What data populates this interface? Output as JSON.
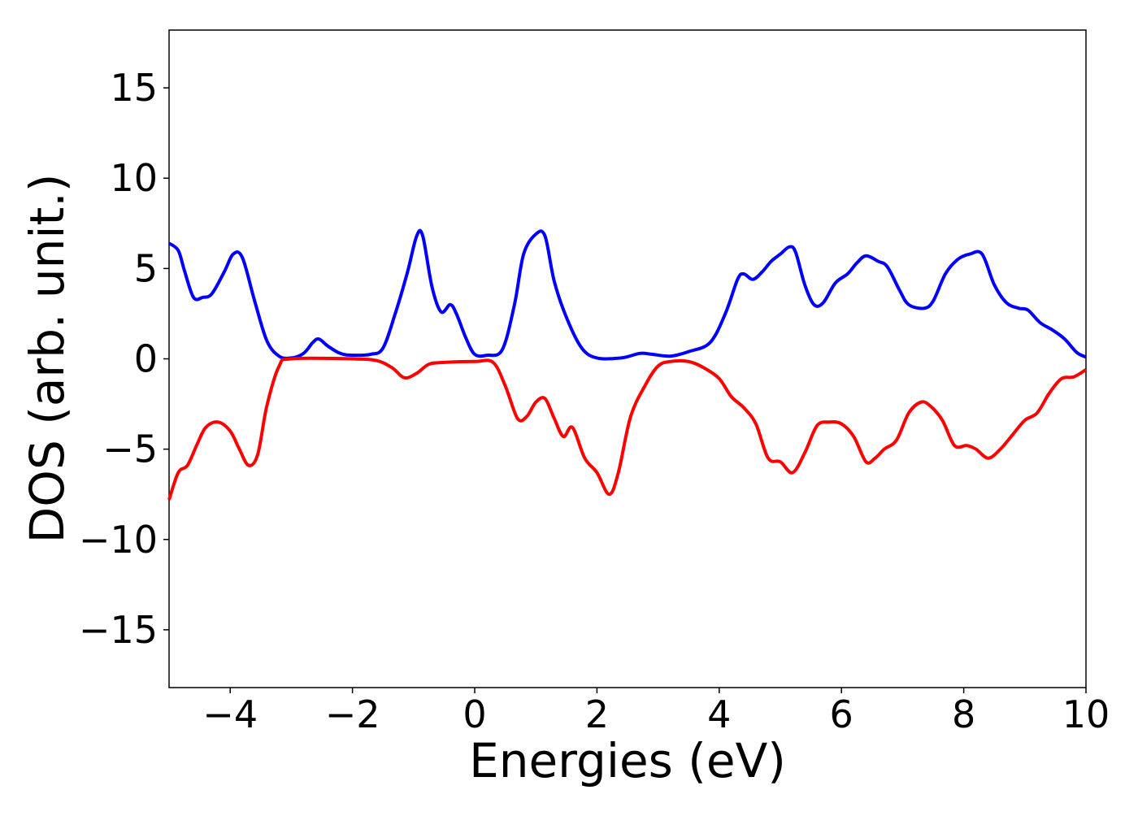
{
  "chart_data": {
    "type": "line",
    "title": "",
    "xlabel": "Energies (eV)",
    "ylabel": "DOS (arb. unit.)",
    "xlim": [
      -5,
      10
    ],
    "ylim": [
      -18.2,
      18.2
    ],
    "x_ticks": [
      -4,
      -2,
      0,
      2,
      4,
      6,
      8,
      10
    ],
    "x_tick_labels": [
      "−4",
      "−2",
      "0",
      "2",
      "4",
      "6",
      "8",
      "10"
    ],
    "y_ticks": [
      15,
      10,
      5,
      0,
      -5,
      -10,
      -15
    ],
    "y_tick_labels": [
      "15",
      "10",
      "5",
      "0",
      "−5",
      "−10",
      "−15"
    ],
    "grid": false,
    "legend": "none",
    "series": [
      {
        "color": "#0000ff",
        "points": [
          [
            -5.0,
            6.4
          ],
          [
            -4.85,
            6.0
          ],
          [
            -4.75,
            4.9
          ],
          [
            -4.6,
            3.4
          ],
          [
            -4.45,
            3.4
          ],
          [
            -4.3,
            3.6
          ],
          [
            -4.1,
            4.8
          ],
          [
            -3.95,
            5.8
          ],
          [
            -3.8,
            5.6
          ],
          [
            -3.6,
            3.2
          ],
          [
            -3.4,
            1.0
          ],
          [
            -3.2,
            0.15
          ],
          [
            -3.0,
            0.05
          ],
          [
            -2.8,
            0.3
          ],
          [
            -2.65,
            0.9
          ],
          [
            -2.55,
            1.1
          ],
          [
            -2.4,
            0.7
          ],
          [
            -2.2,
            0.3
          ],
          [
            -2.0,
            0.2
          ],
          [
            -1.7,
            0.25
          ],
          [
            -1.5,
            0.6
          ],
          [
            -1.3,
            2.5
          ],
          [
            -1.1,
            4.8
          ],
          [
            -0.95,
            6.8
          ],
          [
            -0.85,
            6.8
          ],
          [
            -0.7,
            4.0
          ],
          [
            -0.55,
            2.6
          ],
          [
            -0.4,
            3.0
          ],
          [
            -0.3,
            2.5
          ],
          [
            -0.15,
            1.2
          ],
          [
            0.0,
            0.25
          ],
          [
            0.2,
            0.2
          ],
          [
            0.45,
            0.5
          ],
          [
            0.65,
            3.0
          ],
          [
            0.8,
            5.8
          ],
          [
            1.0,
            6.9
          ],
          [
            1.15,
            6.8
          ],
          [
            1.3,
            4.3
          ],
          [
            1.5,
            2.3
          ],
          [
            1.75,
            0.6
          ],
          [
            2.0,
            0.05
          ],
          [
            2.4,
            0.05
          ],
          [
            2.7,
            0.3
          ],
          [
            2.9,
            0.25
          ],
          [
            3.2,
            0.15
          ],
          [
            3.5,
            0.4
          ],
          [
            3.85,
            0.9
          ],
          [
            4.1,
            2.5
          ],
          [
            4.3,
            4.4
          ],
          [
            4.4,
            4.7
          ],
          [
            4.55,
            4.4
          ],
          [
            4.7,
            4.8
          ],
          [
            4.85,
            5.4
          ],
          [
            5.0,
            5.8
          ],
          [
            5.15,
            6.2
          ],
          [
            5.25,
            5.9
          ],
          [
            5.4,
            4.1
          ],
          [
            5.55,
            3.0
          ],
          [
            5.7,
            3.1
          ],
          [
            5.9,
            4.2
          ],
          [
            6.1,
            4.7
          ],
          [
            6.25,
            5.3
          ],
          [
            6.4,
            5.7
          ],
          [
            6.6,
            5.4
          ],
          [
            6.75,
            5.1
          ],
          [
            6.95,
            3.8
          ],
          [
            7.1,
            3.0
          ],
          [
            7.35,
            2.8
          ],
          [
            7.5,
            3.2
          ],
          [
            7.7,
            4.7
          ],
          [
            7.9,
            5.5
          ],
          [
            8.1,
            5.8
          ],
          [
            8.3,
            5.8
          ],
          [
            8.5,
            4.1
          ],
          [
            8.7,
            3.1
          ],
          [
            8.9,
            2.8
          ],
          [
            9.05,
            2.7
          ],
          [
            9.25,
            2.0
          ],
          [
            9.45,
            1.6
          ],
          [
            9.65,
            1.1
          ],
          [
            9.85,
            0.35
          ],
          [
            10.0,
            0.1
          ]
        ]
      },
      {
        "color": "#ff0000",
        "points": [
          [
            -5.0,
            -7.8
          ],
          [
            -4.85,
            -6.3
          ],
          [
            -4.7,
            -5.9
          ],
          [
            -4.55,
            -4.8
          ],
          [
            -4.4,
            -3.8
          ],
          [
            -4.2,
            -3.5
          ],
          [
            -4.0,
            -4.0
          ],
          [
            -3.85,
            -5.0
          ],
          [
            -3.7,
            -5.9
          ],
          [
            -3.55,
            -5.3
          ],
          [
            -3.4,
            -2.6
          ],
          [
            -3.2,
            -0.4
          ],
          [
            -3.0,
            0.0
          ],
          [
            -2.0,
            0.0
          ],
          [
            -1.6,
            -0.1
          ],
          [
            -1.35,
            -0.5
          ],
          [
            -1.15,
            -1.05
          ],
          [
            -0.95,
            -0.8
          ],
          [
            -0.75,
            -0.3
          ],
          [
            -0.5,
            -0.2
          ],
          [
            0.0,
            -0.15
          ],
          [
            0.3,
            -0.2
          ],
          [
            0.5,
            -1.5
          ],
          [
            0.7,
            -3.3
          ],
          [
            0.85,
            -3.2
          ],
          [
            1.0,
            -2.4
          ],
          [
            1.15,
            -2.2
          ],
          [
            1.3,
            -3.3
          ],
          [
            1.45,
            -4.3
          ],
          [
            1.6,
            -3.8
          ],
          [
            1.8,
            -5.5
          ],
          [
            2.0,
            -6.3
          ],
          [
            2.2,
            -7.5
          ],
          [
            2.35,
            -6.3
          ],
          [
            2.55,
            -3.2
          ],
          [
            2.8,
            -1.4
          ],
          [
            3.0,
            -0.4
          ],
          [
            3.2,
            -0.15
          ],
          [
            3.5,
            -0.15
          ],
          [
            3.75,
            -0.5
          ],
          [
            4.0,
            -1.1
          ],
          [
            4.2,
            -2.1
          ],
          [
            4.4,
            -2.7
          ],
          [
            4.6,
            -3.6
          ],
          [
            4.8,
            -5.5
          ],
          [
            5.0,
            -5.7
          ],
          [
            5.2,
            -6.3
          ],
          [
            5.4,
            -5.2
          ],
          [
            5.6,
            -3.7
          ],
          [
            5.8,
            -3.5
          ],
          [
            6.0,
            -3.6
          ],
          [
            6.2,
            -4.3
          ],
          [
            6.4,
            -5.7
          ],
          [
            6.55,
            -5.5
          ],
          [
            6.7,
            -5.0
          ],
          [
            6.9,
            -4.5
          ],
          [
            7.1,
            -3.0
          ],
          [
            7.3,
            -2.4
          ],
          [
            7.45,
            -2.6
          ],
          [
            7.65,
            -3.4
          ],
          [
            7.85,
            -4.8
          ],
          [
            8.05,
            -4.8
          ],
          [
            8.2,
            -5.0
          ],
          [
            8.4,
            -5.5
          ],
          [
            8.6,
            -5.0
          ],
          [
            8.8,
            -4.2
          ],
          [
            9.0,
            -3.4
          ],
          [
            9.2,
            -3.0
          ],
          [
            9.4,
            -1.9
          ],
          [
            9.6,
            -1.1
          ],
          [
            9.8,
            -1.0
          ],
          [
            10.0,
            -0.6
          ]
        ]
      }
    ]
  }
}
